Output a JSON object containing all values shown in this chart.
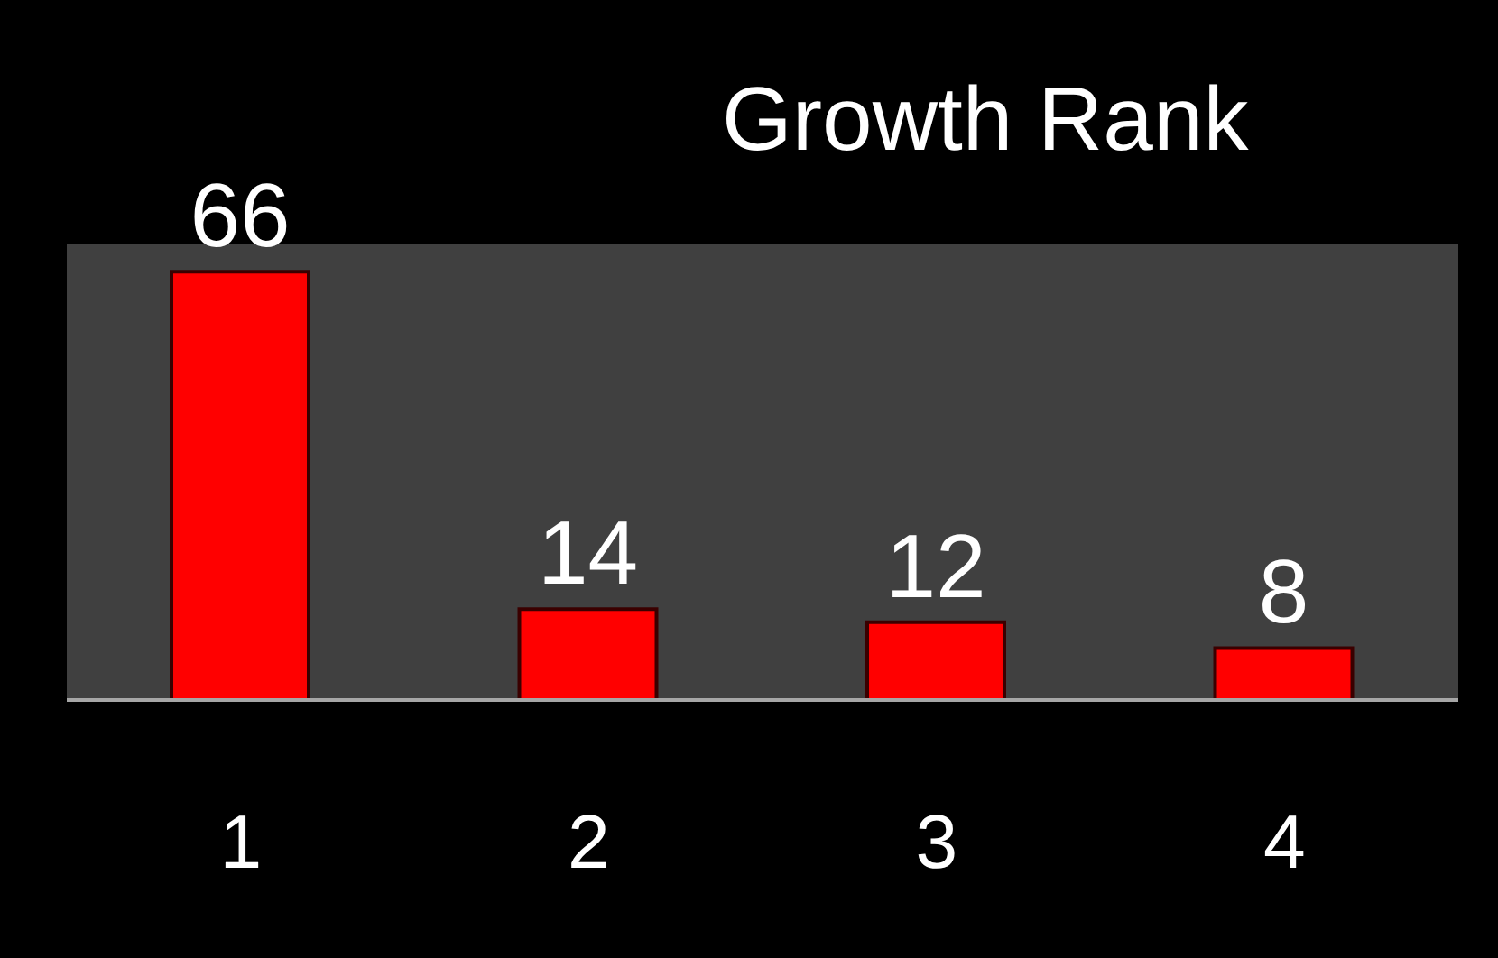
{
  "chart_data": {
    "type": "bar",
    "title": "Growth Rank",
    "categories": [
      "1",
      "2",
      "3",
      "4"
    ],
    "values": [
      66,
      14,
      12,
      8
    ],
    "color": "#ff0000",
    "data_labels": true
  }
}
